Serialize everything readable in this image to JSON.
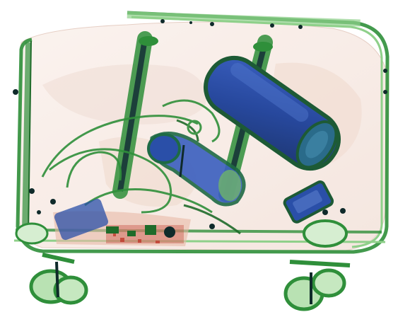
{
  "image": {
    "subject": "xray-scan-of-rolling-suitcase",
    "palette": {
      "background": "#ffffff",
      "organic_tint": "#f4e4dc",
      "organic_edge": "#d9b7a8",
      "dense_green": "#2f8f3a",
      "light_green": "#8fd08a",
      "metal_blue": "#2a4fa8",
      "metal_dark": "#0f2a2a",
      "electronics_red": "#c0392b"
    },
    "objects": [
      "suitcase-shell",
      "telescopic-handle",
      "cylindrical-speaker",
      "hair-dryer",
      "power-bank",
      "cables",
      "circuit-board",
      "wheels"
    ]
  }
}
